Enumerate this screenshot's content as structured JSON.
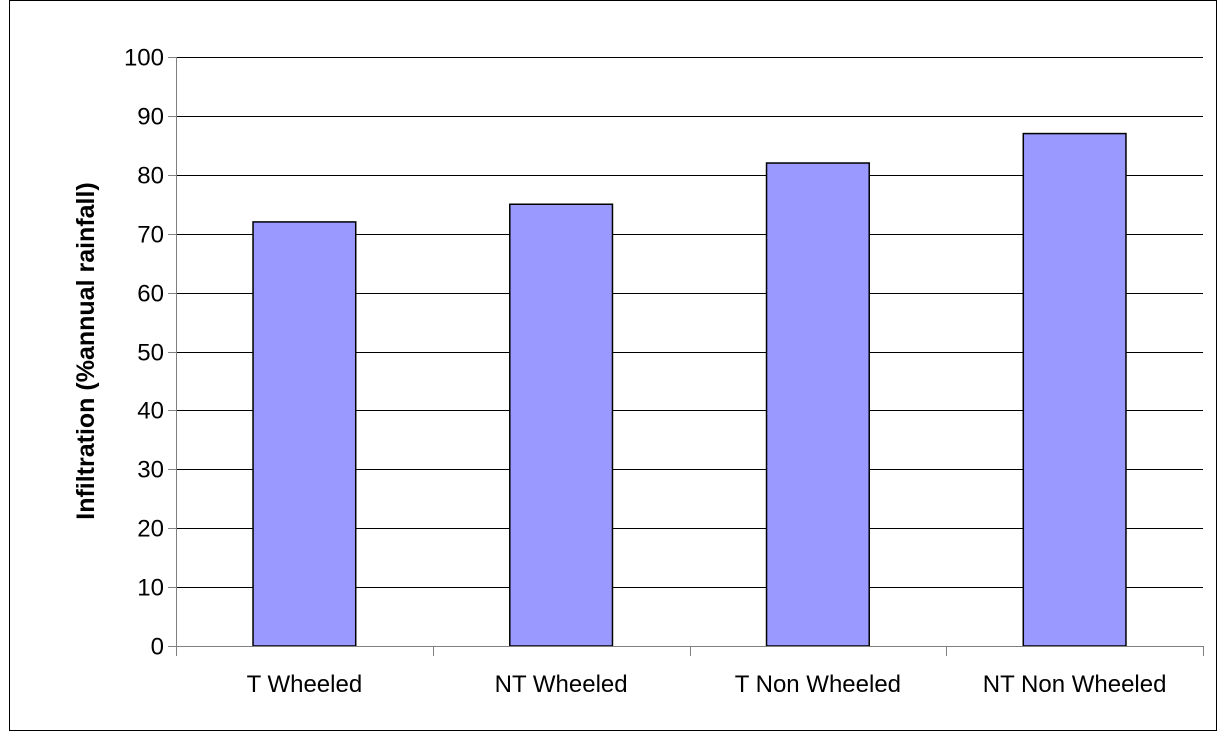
{
  "chart_data": {
    "type": "bar",
    "title": "",
    "xlabel": "",
    "ylabel": "Infiltration (%annual rainfall)",
    "categories": [
      "T Wheeled",
      "NT Wheeled",
      "T Non Wheeled",
      "NT Non Wheeled"
    ],
    "values": [
      72,
      75,
      82,
      87
    ],
    "ylim": [
      0,
      100
    ],
    "ytick_step": 10,
    "y_ticks": [
      "0",
      "10",
      "20",
      "30",
      "40",
      "50",
      "60",
      "70",
      "80",
      "90",
      "100"
    ],
    "grid": true,
    "legend": "none",
    "colors": {
      "bar_fill": "#9999ff",
      "bar_stroke": "#000000",
      "grid": "#000000",
      "axis": "#808080"
    }
  }
}
